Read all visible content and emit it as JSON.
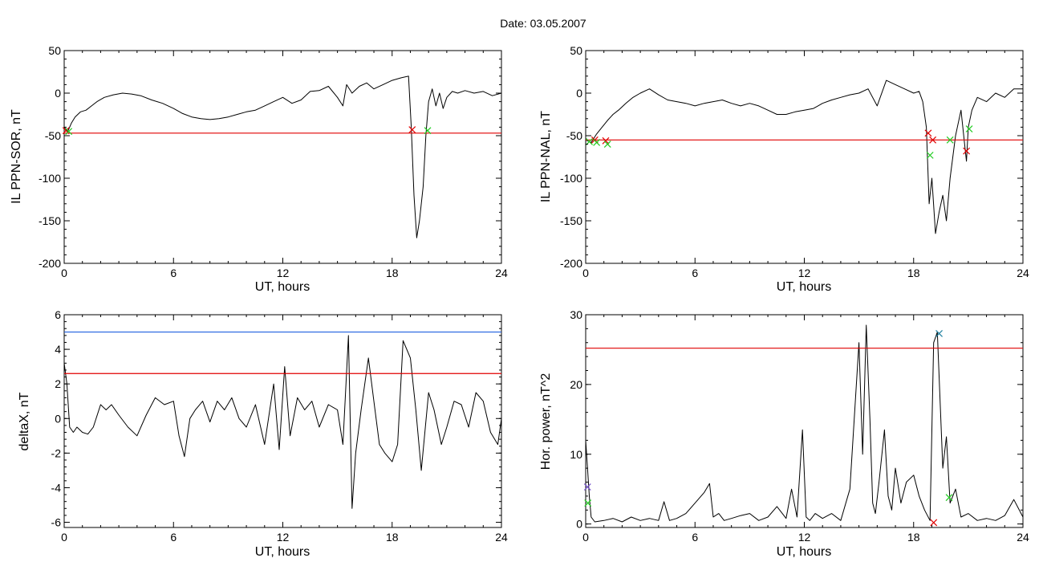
{
  "figure": {
    "title": "Date:  03.05.2007"
  },
  "chart_data": [
    {
      "type": "line",
      "panel": "top-left",
      "title": "",
      "xlabel": "UT, hours",
      "ylabel": "IL PPN-SOR, nT",
      "xlim": [
        0,
        24
      ],
      "ylim": [
        -200,
        50
      ],
      "xticks": [
        "0",
        "6",
        "12",
        "18",
        "24"
      ],
      "yticks": [
        "50",
        "0",
        "-50",
        "-100",
        "-150",
        "-200"
      ],
      "grid": false,
      "series": [
        {
          "role": "data",
          "color": "#000000",
          "x": [
            0,
            0.2,
            0.4,
            0.6,
            0.9,
            1.2,
            1.5,
            1.8,
            2.2,
            2.7,
            3.2,
            3.7,
            4.2,
            4.8,
            5.4,
            6.0,
            6.5,
            7.0,
            7.5,
            8.0,
            8.5,
            9.0,
            9.5,
            10.0,
            10.5,
            11.0,
            11.5,
            12.0,
            12.5,
            13.0,
            13.5,
            14.0,
            14.5,
            15.0,
            15.3,
            15.5,
            15.8,
            16.2,
            16.6,
            17.0,
            17.5,
            18.0,
            18.5,
            18.9,
            19.05,
            19.2,
            19.35,
            19.5,
            19.7,
            19.85,
            20.0,
            20.2,
            20.4,
            20.6,
            20.8,
            21.0,
            21.3,
            21.6,
            22.0,
            22.5,
            23.0,
            23.5,
            24.0
          ],
          "y": [
            -40,
            -45,
            -35,
            -28,
            -22,
            -20,
            -15,
            -10,
            -5,
            -2,
            0,
            -1,
            -3,
            -8,
            -12,
            -18,
            -24,
            -28,
            -30,
            -31,
            -30,
            -28,
            -25,
            -22,
            -20,
            -15,
            -10,
            -5,
            -12,
            -8,
            2,
            3,
            8,
            -5,
            -15,
            10,
            0,
            8,
            12,
            5,
            10,
            15,
            18,
            20,
            -40,
            -120,
            -170,
            -150,
            -110,
            -50,
            -10,
            5,
            -15,
            0,
            -18,
            -5,
            2,
            0,
            3,
            0,
            2,
            -3,
            0
          ]
        },
        {
          "role": "threshold",
          "color": "#e00000",
          "value": -47
        }
      ],
      "markers": [
        {
          "x": 0.1,
          "y": -44,
          "color": "#e00000"
        },
        {
          "x": 0.25,
          "y": -45,
          "color": "#22cc22"
        },
        {
          "x": 19.1,
          "y": -43,
          "color": "#e00000"
        },
        {
          "x": 19.95,
          "y": -44,
          "color": "#22cc22"
        }
      ]
    },
    {
      "type": "line",
      "panel": "top-right",
      "title": "",
      "xlabel": "UT, hours",
      "ylabel": "IL PPN-NAL, nT",
      "xlim": [
        0,
        24
      ],
      "ylim": [
        -200,
        50
      ],
      "xticks": [
        "0",
        "6",
        "12",
        "18",
        "24"
      ],
      "yticks": [
        "50",
        "0",
        "-50",
        "-100",
        "-150",
        "-200"
      ],
      "grid": false,
      "series": [
        {
          "role": "data",
          "color": "#000000",
          "x": [
            0,
            0.3,
            0.6,
            0.9,
            1.2,
            1.5,
            1.8,
            2.2,
            2.6,
            3.0,
            3.5,
            4.0,
            4.5,
            5.0,
            5.5,
            6.0,
            6.5,
            7.0,
            7.5,
            8.0,
            8.5,
            9.0,
            9.5,
            10.0,
            10.5,
            11.0,
            11.5,
            12.0,
            12.5,
            13.0,
            13.5,
            14.0,
            14.5,
            15.0,
            15.5,
            16.0,
            16.5,
            17.0,
            17.5,
            18.0,
            18.3,
            18.5,
            18.7,
            18.85,
            19.0,
            19.2,
            19.4,
            19.6,
            19.8,
            20.0,
            20.3,
            20.6,
            20.8,
            20.9,
            21.0,
            21.2,
            21.5,
            22.0,
            22.5,
            23.0,
            23.5,
            24.0
          ],
          "y": [
            -55,
            -58,
            -48,
            -40,
            -32,
            -25,
            -20,
            -12,
            -5,
            0,
            5,
            -2,
            -8,
            -10,
            -12,
            -15,
            -12,
            -10,
            -8,
            -12,
            -15,
            -12,
            -15,
            -20,
            -25,
            -25,
            -22,
            -20,
            -18,
            -12,
            -8,
            -5,
            -2,
            0,
            5,
            -15,
            15,
            10,
            5,
            0,
            2,
            -10,
            -40,
            -130,
            -100,
            -165,
            -140,
            -120,
            -150,
            -100,
            -50,
            -20,
            -60,
            -80,
            -40,
            -20,
            -5,
            -10,
            0,
            -5,
            5,
            5
          ]
        },
        {
          "role": "threshold",
          "color": "#e00000",
          "value": -55
        }
      ],
      "markers": [
        {
          "x": 0.2,
          "y": -57,
          "color": "#22cc22"
        },
        {
          "x": 0.5,
          "y": -55,
          "color": "#e00000"
        },
        {
          "x": 0.6,
          "y": -58,
          "color": "#22cc22"
        },
        {
          "x": 1.1,
          "y": -56,
          "color": "#e00000"
        },
        {
          "x": 1.2,
          "y": -60,
          "color": "#22cc22"
        },
        {
          "x": 18.8,
          "y": -47,
          "color": "#e00000"
        },
        {
          "x": 18.9,
          "y": -73,
          "color": "#22cc22"
        },
        {
          "x": 19.05,
          "y": -55,
          "color": "#e00000"
        },
        {
          "x": 20.0,
          "y": -55,
          "color": "#22cc22"
        },
        {
          "x": 20.9,
          "y": -68,
          "color": "#e00000"
        },
        {
          "x": 21.05,
          "y": -42,
          "color": "#22cc22"
        }
      ]
    },
    {
      "type": "line",
      "panel": "bottom-left",
      "title": "",
      "xlabel": "UT, hours",
      "ylabel": "deltaX, nT",
      "xlim": [
        0,
        24
      ],
      "ylim": [
        -6.3,
        6
      ],
      "xticks": [
        "0",
        "6",
        "12",
        "18",
        "24"
      ],
      "yticks": [
        "6",
        "4",
        "2",
        "0",
        "-2",
        "-4",
        "-6"
      ],
      "grid": false,
      "series": [
        {
          "role": "data",
          "color": "#000000",
          "x": [
            0,
            0.15,
            0.3,
            0.5,
            0.7,
            1.0,
            1.3,
            1.6,
            2.0,
            2.3,
            2.6,
            3.0,
            3.5,
            4.0,
            4.5,
            5.0,
            5.5,
            6.0,
            6.3,
            6.6,
            6.9,
            7.2,
            7.6,
            8.0,
            8.4,
            8.8,
            9.2,
            9.6,
            10.0,
            10.5,
            11.0,
            11.5,
            11.8,
            12.1,
            12.4,
            12.8,
            13.2,
            13.6,
            14.0,
            14.5,
            15.0,
            15.3,
            15.6,
            15.8,
            16.0,
            16.3,
            16.7,
            17.0,
            17.3,
            17.6,
            18.0,
            18.3,
            18.6,
            19.0,
            19.3,
            19.6,
            20.0,
            20.3,
            20.7,
            21.0,
            21.4,
            21.8,
            22.2,
            22.6,
            23.0,
            23.4,
            23.8,
            24.0
          ],
          "y": [
            3.2,
            2.0,
            -0.5,
            -0.8,
            -0.5,
            -0.8,
            -0.9,
            -0.5,
            0.8,
            0.5,
            0.8,
            0.2,
            -0.5,
            -1.0,
            0.2,
            1.2,
            0.8,
            1.0,
            -1.0,
            -2.2,
            0,
            0.5,
            1.0,
            -0.2,
            1.0,
            0.5,
            1.2,
            0,
            -0.5,
            0.8,
            -1.5,
            2.0,
            -1.8,
            3.0,
            -1.0,
            1.2,
            0.5,
            1.0,
            -0.5,
            0.8,
            0.5,
            -1.5,
            4.8,
            -5.2,
            -2.0,
            0.5,
            3.5,
            1.0,
            -1.5,
            -2.0,
            -2.5,
            -1.5,
            4.5,
            3.5,
            0.5,
            -3.0,
            1.5,
            0.5,
            -1.5,
            -0.5,
            1.0,
            0.8,
            -0.5,
            1.5,
            1.0,
            -0.8,
            -1.5,
            0
          ]
        },
        {
          "role": "threshold",
          "color": "#e00000",
          "value": 2.6
        },
        {
          "role": "threshold",
          "color": "#2060e0",
          "value": 5.0
        }
      ],
      "markers": []
    },
    {
      "type": "line",
      "panel": "bottom-right",
      "title": "",
      "xlabel": "UT, hours",
      "ylabel": "Hor. power, nT^2",
      "xlim": [
        0,
        24
      ],
      "ylim": [
        -0.5,
        30
      ],
      "xticks": [
        "0",
        "6",
        "12",
        "18",
        "24"
      ],
      "yticks": [
        "30",
        "20",
        "10",
        "0"
      ],
      "grid": false,
      "series": [
        {
          "role": "data",
          "color": "#000000",
          "x": [
            0,
            0.1,
            0.2,
            0.3,
            0.5,
            1.0,
            1.5,
            2.0,
            2.5,
            3.0,
            3.5,
            4.0,
            4.3,
            4.6,
            5.0,
            5.5,
            6.0,
            6.5,
            6.8,
            7.0,
            7.3,
            7.6,
            8.0,
            8.5,
            9.0,
            9.5,
            10.0,
            10.5,
            11.0,
            11.3,
            11.6,
            11.9,
            12.1,
            12.3,
            12.6,
            13.0,
            13.5,
            14.0,
            14.5,
            15.0,
            15.2,
            15.4,
            15.6,
            15.75,
            15.9,
            16.1,
            16.4,
            16.6,
            16.8,
            17.0,
            17.3,
            17.6,
            18.0,
            18.3,
            18.6,
            18.9,
            19.1,
            19.3,
            19.6,
            19.8,
            20.0,
            20.3,
            20.6,
            21.0,
            21.5,
            22.0,
            22.5,
            23.0,
            23.5,
            24.0
          ],
          "y": [
            12,
            8,
            4,
            1,
            0.3,
            0.5,
            0.8,
            0.3,
            1.0,
            0.5,
            0.8,
            0.5,
            3.2,
            0.5,
            0.8,
            1.5,
            3.0,
            4.5,
            5.8,
            1.0,
            1.5,
            0.5,
            0.8,
            1.2,
            1.5,
            0.5,
            1.0,
            2.5,
            0.8,
            5.0,
            1.0,
            13.5,
            1.0,
            0.5,
            1.5,
            0.8,
            1.5,
            0.5,
            5.0,
            26.0,
            10.0,
            28.5,
            15.0,
            3.0,
            1.5,
            6.0,
            13.5,
            4.0,
            2.0,
            8.0,
            3.0,
            6.0,
            7.0,
            4.0,
            2.0,
            0.5,
            26.0,
            27.5,
            8.0,
            12.5,
            3.0,
            5.0,
            1.0,
            1.5,
            0.5,
            0.8,
            0.5,
            1.2,
            3.5,
            1.0
          ]
        },
        {
          "role": "threshold",
          "color": "#e00000",
          "value": 25.2
        }
      ],
      "markers": [
        {
          "x": 0.1,
          "y": 5.3,
          "color": "#7755cc"
        },
        {
          "x": 0.12,
          "y": 3.0,
          "color": "#22cc22"
        },
        {
          "x": 19.4,
          "y": 27.3,
          "color": "#2080a0"
        },
        {
          "x": 19.95,
          "y": 3.8,
          "color": "#22cc22"
        },
        {
          "x": 19.1,
          "y": 0.2,
          "color": "#e00000"
        }
      ]
    }
  ]
}
